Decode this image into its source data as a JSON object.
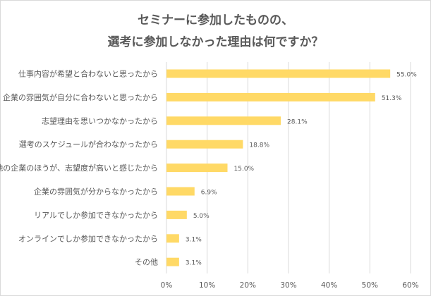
{
  "chart_data": {
    "type": "bar",
    "orientation": "horizontal",
    "title": [
      "セミナーに参加したものの、",
      "選考に参加しなかった理由は何ですか？"
    ],
    "categories": [
      "仕事内容が希望と合わないと思ったから",
      "企業の雰囲気が自分に合わないと思ったから",
      "志望理由を思いつかなかったから",
      "選考のスケジュールが合わなかったから",
      "他の企業のほうが、志望度が高いと感じたから",
      "企業の雰囲気が分からなかったから",
      "リアルでしか参加できなかったから",
      "オンラインでしか参加できなかったから",
      "その他"
    ],
    "values": [
      55.0,
      51.3,
      28.1,
      18.8,
      15.0,
      6.9,
      5.0,
      3.1,
      3.1
    ],
    "value_labels": [
      "55.0%",
      "51.3%",
      "28.1%",
      "18.8%",
      "15.0%",
      "6.9%",
      "5.0%",
      "3.1%",
      "3.1%"
    ],
    "xlim": [
      0,
      60
    ],
    "xticks": [
      "0%",
      "10%",
      "20%",
      "30%",
      "40%",
      "50%",
      "60%"
    ],
    "grid": true,
    "bar_color": "#ffd966",
    "grid_color": "#d9d9d9"
  }
}
